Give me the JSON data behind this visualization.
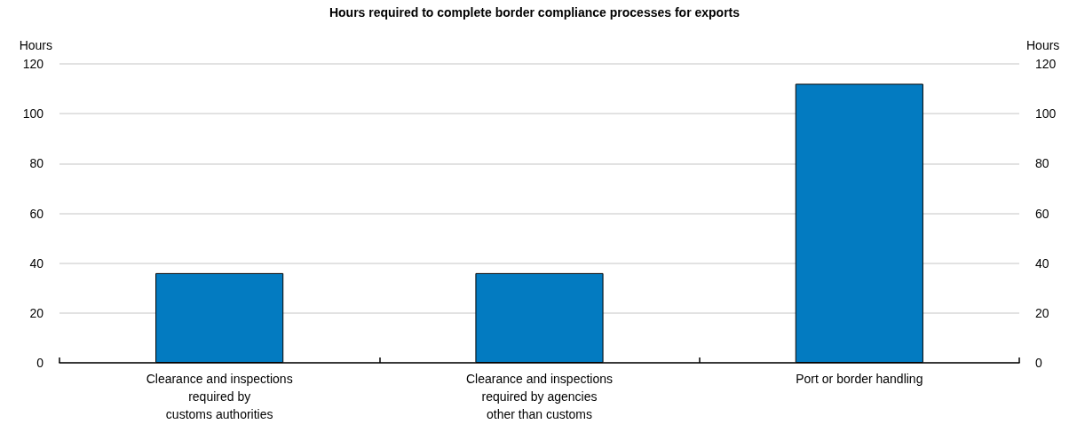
{
  "chart_data": {
    "type": "bar",
    "title": "Hours required to complete border compliance processes for exports",
    "ylabel": "Hours",
    "y2label": "Hours",
    "categories": [
      "Clearance and inspections\nrequired by\ncustoms authorities",
      "Clearance and inspections\nrequired by agencies\nother than customs",
      "Port or border handling"
    ],
    "values": [
      36,
      36,
      112
    ],
    "color": "#037bc1",
    "ylim": [
      0,
      120
    ],
    "yticks": [
      0,
      20,
      40,
      60,
      80,
      100,
      120
    ],
    "y2lim": [
      0,
      120
    ],
    "y2ticks": [
      0,
      20,
      40,
      60,
      80,
      100,
      120
    ],
    "grid": "y"
  }
}
